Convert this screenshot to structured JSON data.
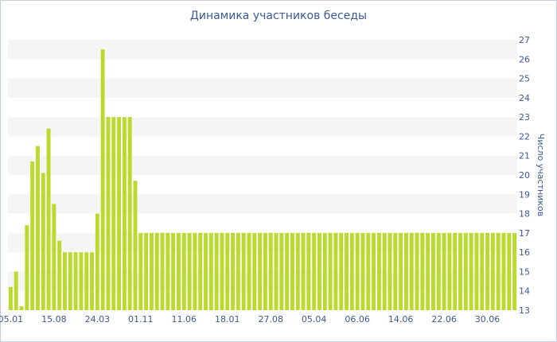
{
  "chart_data": {
    "type": "bar",
    "title": "Динамика участников беседы",
    "xlabel": "",
    "ylabel": "Число участников",
    "ylim": [
      13,
      27
    ],
    "y_ticks": [
      13,
      14,
      15,
      16,
      17,
      18,
      19,
      20,
      21,
      22,
      23,
      24,
      25,
      26,
      27
    ],
    "y_axis_position": "right",
    "grid": "horizontal alternating bands",
    "x_tick_labels": [
      {
        "label": "05.01",
        "index": 0
      },
      {
        "label": "15.08",
        "index": 8
      },
      {
        "label": "24.03",
        "index": 16
      },
      {
        "label": "01.11",
        "index": 24
      },
      {
        "label": "11.06",
        "index": 32
      },
      {
        "label": "18.01",
        "index": 40
      },
      {
        "label": "27.08",
        "index": 48
      },
      {
        "label": "05.04",
        "index": 56
      },
      {
        "label": "06.06",
        "index": 64
      },
      {
        "label": "14.06",
        "index": 72
      },
      {
        "label": "22.06",
        "index": 80
      },
      {
        "label": "30.06",
        "index": 88
      }
    ],
    "series": [
      {
        "color": "#bada2e",
        "values": [
          14.2,
          15,
          13.2,
          17.4,
          20.7,
          21.5,
          20.1,
          22.4,
          18.5,
          16.6,
          16,
          16,
          16,
          16,
          16,
          16,
          18,
          26.5,
          23,
          23,
          23,
          23,
          23,
          19.7,
          17,
          17,
          17,
          17,
          17,
          17,
          17,
          17,
          17,
          17,
          17,
          17,
          17,
          17,
          17,
          17,
          17,
          17,
          17,
          17,
          17,
          17,
          17,
          17,
          17,
          17,
          17,
          17,
          17,
          17,
          17,
          17,
          17,
          17,
          17,
          17,
          17,
          17,
          17,
          17,
          17,
          17,
          17,
          17,
          17,
          17,
          17,
          17,
          17,
          17,
          17,
          17,
          17,
          17,
          17,
          17,
          17,
          17,
          17,
          17,
          17,
          17,
          17,
          17,
          17,
          17,
          17,
          17,
          17,
          17
        ]
      }
    ]
  }
}
